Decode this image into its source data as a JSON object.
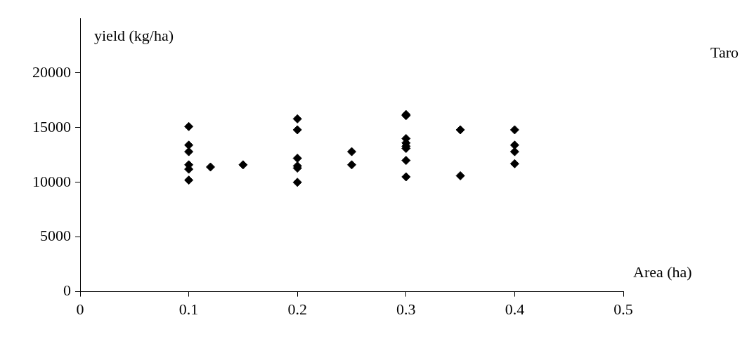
{
  "chart_data": {
    "type": "scatter",
    "title": "Taro",
    "x_label": "Area (ha)",
    "y_label": "yield (kg/ha)",
    "x": [
      0.1,
      0.1,
      0.1,
      0.1,
      0.1,
      0.1,
      0.12,
      0.15,
      0.2,
      0.2,
      0.2,
      0.2,
      0.2,
      0.2,
      0.25,
      0.25,
      0.3,
      0.3,
      0.3,
      0.3,
      0.3,
      0.3,
      0.3,
      0.3,
      0.35,
      0.35,
      0.4,
      0.4,
      0.4,
      0.4
    ],
    "values": [
      15100,
      13400,
      12800,
      11600,
      11200,
      10200,
      11400,
      11600,
      15800,
      14800,
      12200,
      11500,
      11300,
      10000,
      12800,
      11600,
      16200,
      16100,
      14000,
      13600,
      13300,
      13100,
      12000,
      10500,
      14800,
      10600,
      14800,
      13400,
      12800,
      11700
    ],
    "color": "#000000",
    "marker": "diamond",
    "xlim": [
      0,
      0.5
    ],
    "xticks": [
      0,
      0.1,
      0.2,
      0.3,
      0.4,
      0.5
    ],
    "ylim": [
      0,
      25000
    ],
    "yticks": [
      0,
      5000,
      10000,
      15000,
      20000
    ],
    "grid": false
  }
}
